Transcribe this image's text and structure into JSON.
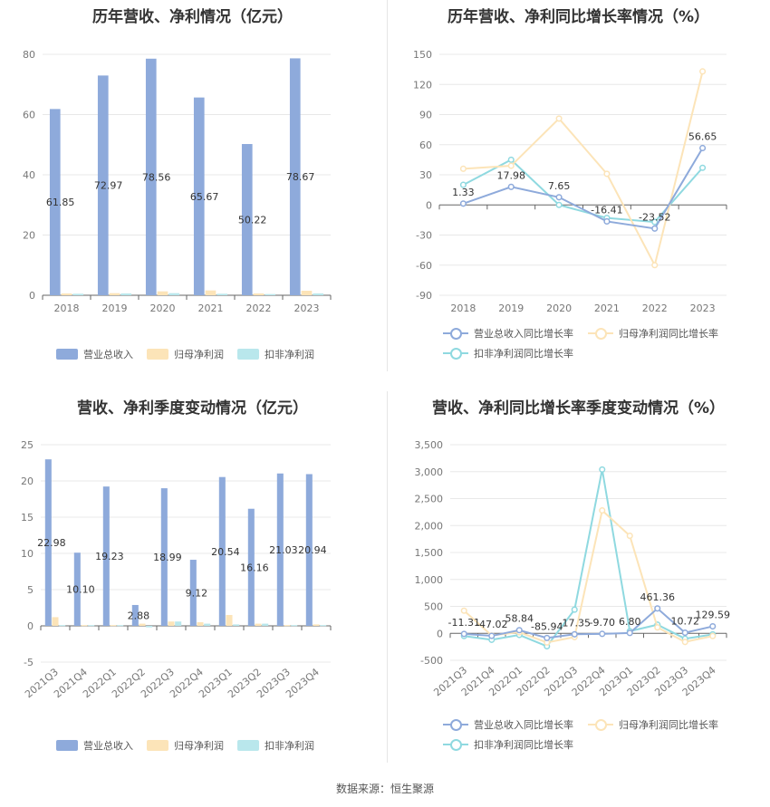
{
  "colors": {
    "revenue": "#8eaadb",
    "net_profit": "#fce4b8",
    "deducted_profit": "#b9e7ec",
    "grid": "#e8e8e8",
    "axis": "#999999"
  },
  "source": "数据来源：恒生聚源",
  "chart_data": [
    {
      "type": "bar",
      "title": "历年营收、净利情况（亿元）",
      "categories": [
        "2018",
        "2019",
        "2020",
        "2021",
        "2022",
        "2023"
      ],
      "ylim": [
        0,
        80
      ],
      "yticks": [
        "0",
        "20",
        "40",
        "60",
        "80"
      ],
      "series": [
        {
          "name": "营业总收入",
          "values": [
            61.85,
            72.97,
            78.56,
            65.67,
            50.22,
            78.67
          ],
          "labels": [
            "61.85",
            "72.97",
            "78.56",
            "65.67",
            "50.22",
            "78.67"
          ]
        },
        {
          "name": "归母净利润",
          "values": [
            0.6,
            0.7,
            1.3,
            1.6,
            0.6,
            1.5
          ]
        },
        {
          "name": "扣非净利润",
          "values": [
            0.5,
            0.6,
            0.7,
            0.5,
            0.4,
            0.6
          ]
        }
      ],
      "legend": "bottom"
    },
    {
      "type": "line",
      "title": "历年营收、净利同比增长率情况（%）",
      "categories": [
        "2018",
        "2019",
        "2020",
        "2021",
        "2022",
        "2023"
      ],
      "ylim": [
        -90,
        150
      ],
      "yticks": [
        "-90",
        "-60",
        "-30",
        "0",
        "30",
        "60",
        "90",
        "120",
        "150"
      ],
      "series": [
        {
          "name": "营业总收入同比增长率",
          "values": [
            1.33,
            17.98,
            7.65,
            -16.41,
            -23.52,
            56.65
          ],
          "labels": [
            "1.33",
            "17.98",
            "7.65",
            "-16.41",
            "-23.52",
            "56.65"
          ]
        },
        {
          "name": "归母净利润同比增长率",
          "values": [
            36,
            39,
            86,
            31,
            -60,
            133
          ]
        },
        {
          "name": "扣非净利润同比增长率",
          "values": [
            20,
            45,
            0,
            -13,
            -17,
            37
          ]
        }
      ],
      "legend": "bottom"
    },
    {
      "type": "bar",
      "title": "营收、净利季度变动情况（亿元）",
      "categories": [
        "2021Q3",
        "2021Q4",
        "2022Q1",
        "2022Q2",
        "2022Q3",
        "2022Q4",
        "2023Q1",
        "2023Q2",
        "2023Q3",
        "2023Q4"
      ],
      "ylim": [
        -5,
        25
      ],
      "yticks": [
        "-5",
        "0",
        "5",
        "10",
        "15",
        "20",
        "25"
      ],
      "series": [
        {
          "name": "营业总收入",
          "values": [
            22.98,
            10.1,
            19.23,
            2.88,
            18.99,
            9.12,
            20.54,
            16.16,
            21.03,
            20.94
          ],
          "labels": [
            "22.98",
            "10.10",
            "19.23",
            "2.88",
            "18.99",
            "9.12",
            "20.54",
            "16.16",
            "21.03",
            "20.94"
          ]
        },
        {
          "name": "归母净利润",
          "values": [
            1.2,
            0.1,
            0.1,
            0.3,
            0.6,
            0.5,
            1.5,
            0.3,
            0.1,
            0.2
          ]
        },
        {
          "name": "扣非净利润",
          "values": [
            0.1,
            0.1,
            0.1,
            -0.2,
            0.6,
            0.3,
            0.2,
            0.3,
            0.1,
            0.1
          ]
        }
      ],
      "legend": "bottom"
    },
    {
      "type": "line",
      "title": "营收、净利同比增长率季度变动情况（%）",
      "categories": [
        "2021Q3",
        "2021Q4",
        "2022Q1",
        "2022Q2",
        "2022Q3",
        "2022Q4",
        "2023Q1",
        "2023Q2",
        "2023Q3",
        "2023Q4"
      ],
      "ylim": [
        -500,
        3500
      ],
      "yticks": [
        "-500",
        "0",
        "500",
        "1,000",
        "1,500",
        "2,000",
        "2,500",
        "3,000",
        "3,500"
      ],
      "series": [
        {
          "name": "营业总收入同比增长率",
          "values": [
            -11.31,
            -47.02,
            58.84,
            -85.94,
            -17.35,
            -9.7,
            6.8,
            461.36,
            10.72,
            129.59
          ],
          "labels": [
            "-11.31",
            "-47.02",
            "58.84",
            "-85.94",
            "-17.35",
            "-9.70",
            "6.80",
            "461.36",
            "10.72",
            "129.59"
          ]
        },
        {
          "name": "归母净利润同比增长率",
          "values": [
            420,
            -40,
            20,
            -170,
            -70,
            2280,
            1810,
            110,
            -160,
            -50
          ]
        },
        {
          "name": "扣非净利润同比增长率",
          "values": [
            -50,
            -120,
            -30,
            -240,
            440,
            3040,
            40,
            160,
            -100,
            -20
          ]
        }
      ],
      "legend": "bottom"
    }
  ]
}
